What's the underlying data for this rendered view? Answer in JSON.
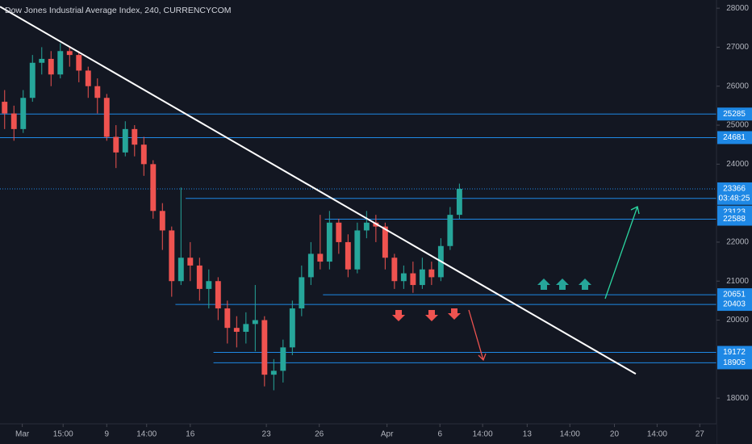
{
  "chart_data": {
    "type": "candlestick",
    "title": "Dow Jones Industrial Average Index, 240, CURRENCYCOM",
    "xlim": [
      -0.5,
      76.7
    ],
    "ylim": [
      17340,
      28210
    ],
    "xticks": [
      {
        "value": 1.9,
        "label": "Mar"
      },
      {
        "value": 6.3,
        "label": "15:00"
      },
      {
        "value": 11,
        "label": "9"
      },
      {
        "value": 15.3,
        "label": "14:00"
      },
      {
        "value": 20,
        "label": "16"
      },
      {
        "value": 28.2,
        "label": "23"
      },
      {
        "value": 33.9,
        "label": "26"
      },
      {
        "value": 41.2,
        "label": "Apr"
      },
      {
        "value": 46.9,
        "label": "6"
      },
      {
        "value": 51.5,
        "label": "14:00"
      },
      {
        "value": 56.3,
        "label": "13"
      },
      {
        "value": 60.9,
        "label": "14:00"
      },
      {
        "value": 65.7,
        "label": "20"
      },
      {
        "value": 70.3,
        "label": "14:00"
      },
      {
        "value": 74.9,
        "label": "27"
      }
    ],
    "yticks": [
      18000,
      20000,
      21000,
      22000,
      24000,
      25000,
      26000,
      27000,
      28000
    ],
    "up_color": "#26a69a",
    "down_color": "#ef5350",
    "open": [
      25600,
      25300,
      24900,
      25700,
      26600,
      26700,
      26300,
      26900,
      26800,
      26400,
      26000,
      25700,
      24700,
      24300,
      24900,
      24500,
      24000,
      22800,
      22300,
      21000,
      21600,
      21400,
      20800,
      21000,
      20300,
      19800,
      19700,
      19900,
      20000,
      18600,
      18700,
      19300,
      20300,
      21100,
      21700,
      21500,
      22500,
      22000,
      21300,
      22300,
      22500,
      22400,
      21600,
      21000,
      21200,
      20900,
      21300,
      21100,
      21900,
      22700
    ],
    "high": [
      25900,
      25500,
      25900,
      26800,
      27000,
      26900,
      27100,
      27000,
      26900,
      26500,
      26200,
      25800,
      25000,
      25100,
      25000,
      24700,
      24100,
      23000,
      22400,
      23400,
      22000,
      21600,
      21300,
      21100,
      20500,
      20100,
      20200,
      20900,
      20100,
      19000,
      19500,
      20500,
      21400,
      22000,
      22700,
      22800,
      22600,
      22200,
      22500,
      22800,
      22700,
      22500,
      21700,
      21400,
      21500,
      21600,
      21500,
      22100,
      22900,
      23500
    ],
    "low": [
      24900,
      24600,
      24800,
      25600,
      26300,
      26000,
      26200,
      26500,
      26100,
      25700,
      25300,
      24600,
      23900,
      24200,
      24200,
      23700,
      22600,
      21800,
      20600,
      20900,
      21000,
      20500,
      20300,
      20000,
      19400,
      19300,
      19400,
      19200,
      18300,
      18200,
      18400,
      19100,
      20100,
      20900,
      21300,
      21300,
      21700,
      21100,
      21200,
      22100,
      22000,
      21300,
      20800,
      20800,
      20700,
      20800,
      20900,
      21000,
      21800,
      22600
    ],
    "close": [
      25300,
      24900,
      25700,
      26600,
      26700,
      26300,
      26900,
      26800,
      26400,
      26000,
      25700,
      24700,
      24300,
      24900,
      24500,
      24000,
      22800,
      22300,
      21000,
      21600,
      21400,
      20800,
      21000,
      20300,
      19800,
      19700,
      19900,
      20000,
      18600,
      18700,
      19300,
      20300,
      21100,
      21700,
      21500,
      22500,
      22000,
      21300,
      22300,
      22500,
      22400,
      21600,
      21000,
      21200,
      20900,
      21300,
      21100,
      21900,
      22700,
      23366
    ],
    "levels": [
      {
        "value": 25285,
        "start": -0.5,
        "color": "#1e88e5"
      },
      {
        "value": 24681,
        "start": -0.5,
        "color": "#1e88e5"
      },
      {
        "value": 23366,
        "start": -0.5,
        "color": "#1e88e5",
        "dotted": true
      },
      {
        "value": 23123,
        "start": 19.5,
        "color": "#1e88e5",
        "countdown": "03:48:25"
      },
      {
        "value": 22588,
        "start": 34.5,
        "color": "#1e88e5"
      },
      {
        "value": 20651,
        "start": 34.3,
        "color": "#1e88e5"
      },
      {
        "value": 20403,
        "start": 18.4,
        "color": "#1e88e5"
      },
      {
        "value": 19172,
        "start": 22.5,
        "color": "#1e88e5"
      },
      {
        "value": 18905,
        "start": 22.5,
        "color": "#1e88e5"
      }
    ],
    "trendline": {
      "start": [
        -0.5,
        28040
      ],
      "end": [
        68,
        18620
      ],
      "color": "#ffffff"
    }
  }
}
